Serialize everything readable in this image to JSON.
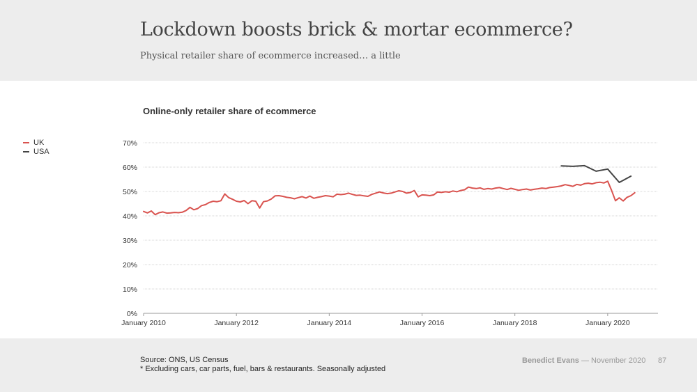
{
  "slide": {
    "title": "Lockdown boosts brick & mortar ecommerce?",
    "subtitle": "Physical retailer share of ecommerce increased… a little"
  },
  "footer": {
    "source": "Source: ONS, US Census",
    "note": "* Excluding cars, car parts, fuel, bars & restaurants. Seasonally adjusted",
    "author": "Benedict Evans",
    "date": "— November 2020",
    "page_number": "87"
  },
  "chart_data": {
    "type": "line",
    "title": "Online-only retailer share of ecommerce",
    "xlabel": "",
    "ylabel": "",
    "x_range": [
      "2010-01",
      "2021-02"
    ],
    "ylim": [
      0,
      70
    ],
    "y_ticks": [
      "0%",
      "10%",
      "20%",
      "30%",
      "40%",
      "50%",
      "60%",
      "70%"
    ],
    "x_ticks": [
      {
        "label": "January 2010",
        "date": "2010-01"
      },
      {
        "label": "January 2012",
        "date": "2012-01"
      },
      {
        "label": "January 2014",
        "date": "2014-01"
      },
      {
        "label": "January 2016",
        "date": "2016-01"
      },
      {
        "label": "January 2018",
        "date": "2018-01"
      },
      {
        "label": "January 2020",
        "date": "2020-01"
      }
    ],
    "grid": true,
    "legend_position": "left",
    "colors": {
      "UK": "#d9534f",
      "USA": "#444444"
    },
    "series": [
      {
        "name": "UK",
        "start": "2010-01",
        "frequency": "monthly",
        "values": [
          41.8,
          41.2,
          42.0,
          40.5,
          41.3,
          41.6,
          41.1,
          41.2,
          41.4,
          41.3,
          41.5,
          42.2,
          43.5,
          42.5,
          43.0,
          44.2,
          44.6,
          45.5,
          46.0,
          45.8,
          46.2,
          49.0,
          47.5,
          46.8,
          46.0,
          45.7,
          46.3,
          45.0,
          46.2,
          46.0,
          43.2,
          45.8,
          46.1,
          46.9,
          48.2,
          48.3,
          48.0,
          47.6,
          47.4,
          47.0,
          47.5,
          47.9,
          47.3,
          48.1,
          47.2,
          47.6,
          47.9,
          48.3,
          48.1,
          47.8,
          48.9,
          48.7,
          48.9,
          49.3,
          48.8,
          48.4,
          48.5,
          48.2,
          48.0,
          48.8,
          49.3,
          49.8,
          49.4,
          49.1,
          49.3,
          49.8,
          50.3,
          50.0,
          49.3,
          49.6,
          50.4,
          47.8,
          48.6,
          48.5,
          48.3,
          48.6,
          49.8,
          49.6,
          49.9,
          49.7,
          50.2,
          49.9,
          50.4,
          50.7,
          51.8,
          51.4,
          51.2,
          51.5,
          50.9,
          51.2,
          51.0,
          51.4,
          51.6,
          51.2,
          50.8,
          51.3,
          50.9,
          50.5,
          50.8,
          51.0,
          50.6,
          50.9,
          51.1,
          51.4,
          51.2,
          51.6,
          51.8,
          52.0,
          52.3,
          52.8,
          52.5,
          52.1,
          52.9,
          52.6,
          53.2,
          53.4,
          53.1,
          53.6,
          53.8,
          53.5,
          54.2,
          50.5,
          46.2,
          47.4,
          46.1,
          47.6,
          48.3,
          49.5
        ]
      },
      {
        "name": "USA",
        "points": [
          {
            "x": "2019-01",
            "y": 60.5
          },
          {
            "x": "2019-04",
            "y": 60.3
          },
          {
            "x": "2019-07",
            "y": 60.6
          },
          {
            "x": "2019-10",
            "y": 58.3
          },
          {
            "x": "2020-01",
            "y": 59.2
          },
          {
            "x": "2020-04",
            "y": 53.7
          },
          {
            "x": "2020-07",
            "y": 56.3
          }
        ]
      }
    ]
  }
}
